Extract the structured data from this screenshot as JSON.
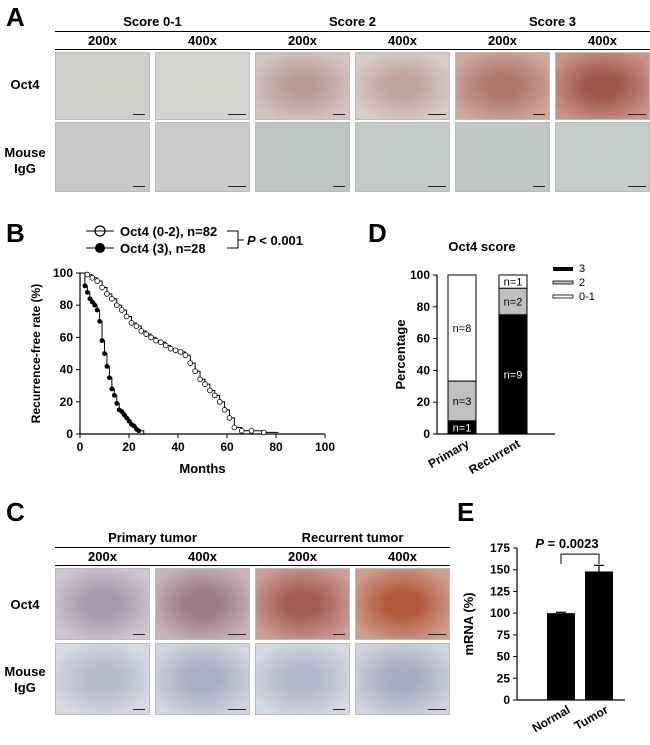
{
  "panels": {
    "a": "A",
    "b": "B",
    "c": "C",
    "d": "D",
    "e": "E"
  },
  "panelA": {
    "groups": [
      "Score 0-1",
      "Score 2",
      "Score 3"
    ],
    "mags": [
      "200x",
      "400x"
    ],
    "rows": [
      "Oct4",
      "Mouse IgG"
    ]
  },
  "panelB": {
    "legend": [
      {
        "label": "Oct4 (0-2), n=82",
        "marker": "open-circle"
      },
      {
        "label": "Oct4 (3), n=28",
        "marker": "filled-circle"
      }
    ],
    "pvalue_label": "P",
    "pvalue_rest": " < 0.001"
  },
  "panelC": {
    "groups": [
      "Primary tumor",
      "Recurrent tumor"
    ],
    "mags": [
      "200x",
      "400x"
    ],
    "rows": [
      "Oct4",
      "Mouse IgG"
    ]
  },
  "chart_data": [
    {
      "type": "line",
      "xlabel": "Months",
      "ylabel": "Recurrence-free rate (%)",
      "xlim": [
        0,
        100
      ],
      "ylim": [
        0,
        100
      ],
      "xticks": [
        0,
        20,
        40,
        60,
        80,
        100
      ],
      "yticks": [
        0,
        20,
        40,
        60,
        80,
        100
      ],
      "series": [
        {
          "name": "Oct4 (0-2), n=82",
          "x": [
            0,
            3,
            5,
            7,
            9,
            11,
            13,
            15,
            17,
            19,
            21,
            23,
            25,
            27,
            29,
            31,
            33,
            35,
            37,
            39,
            41,
            43,
            45,
            47,
            49,
            51,
            53,
            55,
            57,
            59,
            61,
            63,
            66,
            70,
            75,
            81
          ],
          "y": [
            100,
            99,
            97,
            95,
            91,
            87,
            84,
            80,
            77,
            73,
            69,
            67,
            64,
            62,
            60,
            58,
            57,
            55,
            53,
            52,
            51,
            49,
            44,
            39,
            34,
            31,
            27,
            24,
            20,
            15,
            10,
            4,
            2,
            2,
            1,
            1
          ]
        },
        {
          "name": "Oct4 (3), n=28",
          "x": [
            0,
            2,
            3,
            4,
            5,
            6,
            7,
            8,
            9,
            10,
            11,
            12,
            13,
            14,
            15,
            16,
            17,
            18,
            19,
            20,
            21,
            22,
            23,
            24,
            26
          ],
          "y": [
            100,
            92,
            88,
            84,
            82,
            80,
            77,
            70,
            58,
            50,
            42,
            35,
            28,
            24,
            19,
            15,
            14,
            12,
            10,
            8,
            6,
            5,
            3,
            2,
            0
          ]
        }
      ]
    },
    {
      "type": "bar",
      "title": "Oct4 score",
      "ylabel": "Percentage",
      "categories": [
        "Primary",
        "Recurrent"
      ],
      "ylim": [
        0,
        100
      ],
      "yticks": [
        0,
        20,
        40,
        60,
        80,
        100
      ],
      "stacked": true,
      "series": [
        {
          "name": "3",
          "color": "#000000",
          "values": [
            8.3,
            75
          ],
          "labels": [
            "n=1",
            "n=9"
          ]
        },
        {
          "name": "2",
          "color": "#c0c0c0",
          "values": [
            25,
            16.7
          ],
          "labels": [
            "n=3",
            "n=2"
          ]
        },
        {
          "name": "0-1",
          "color": "#ffffff",
          "values": [
            66.7,
            8.3
          ],
          "labels": [
            "n=8",
            "n=1"
          ]
        }
      ]
    },
    {
      "type": "bar",
      "ylabel": "mRNA (%)",
      "categories": [
        "Normal",
        "Tumor"
      ],
      "values": [
        100,
        148
      ],
      "errors": [
        1,
        7
      ],
      "ylim": [
        0,
        175
      ],
      "yticks": [
        0,
        25,
        50,
        75,
        100,
        125,
        150,
        175
      ],
      "pvalue_label": "P",
      "pvalue_rest": " = 0.0023"
    }
  ]
}
